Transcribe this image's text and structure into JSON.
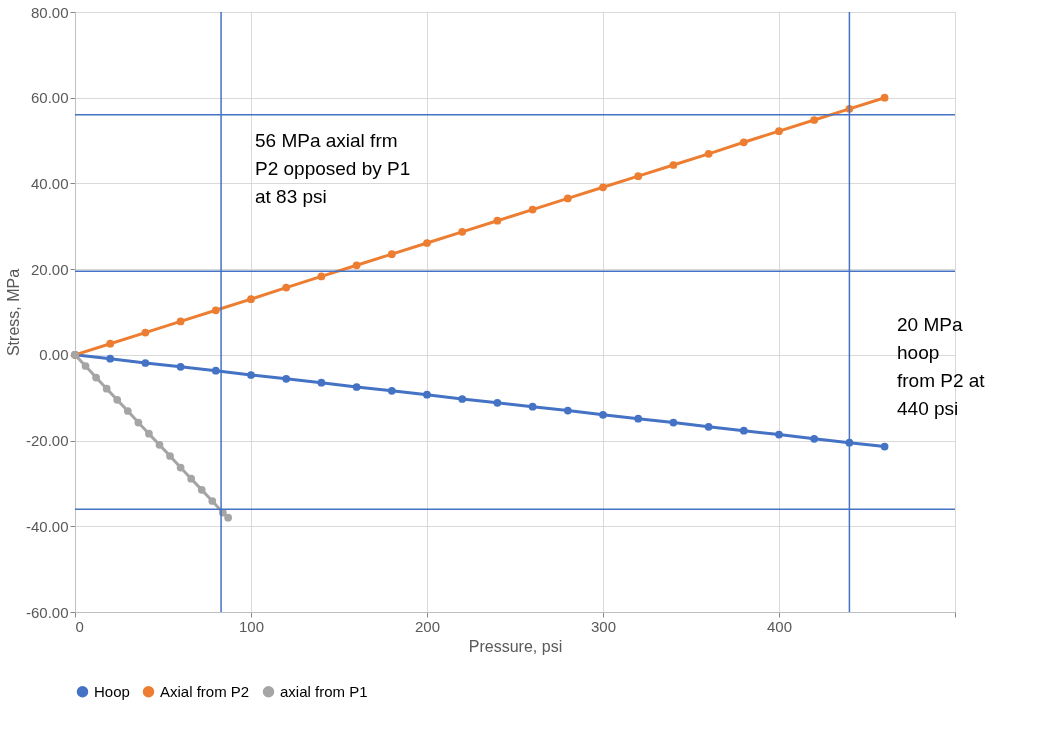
{
  "chart_data": {
    "type": "line",
    "xlabel": "Pressure, psi",
    "ylabel": "Stress, MPa",
    "xlim": [
      0,
      500
    ],
    "xticks": [
      0,
      100,
      200,
      300,
      400,
      {
        "value": 500,
        "label": null
      }
    ],
    "ylim": [
      -60,
      80
    ],
    "yticks": [
      {
        "value": -60,
        "label": "-60.00"
      },
      {
        "value": -40,
        "label": "-40.00"
      },
      {
        "value": -20,
        "label": "-20.00"
      },
      {
        "value": 0,
        "label": "0.00"
      },
      {
        "value": 20,
        "label": "20.00"
      },
      {
        "value": 40,
        "label": "40.00"
      },
      {
        "value": 60,
        "label": "60.00"
      },
      {
        "value": 80,
        "label": "80.00"
      }
    ],
    "grid": true,
    "legend": "bottom",
    "marker": "circle",
    "line_style": "solid",
    "series": [
      {
        "name": "Hoop",
        "color": "#4472c4",
        "x": [
          0,
          20,
          40,
          60,
          80,
          100,
          120,
          140,
          160,
          180,
          200,
          220,
          240,
          260,
          280,
          300,
          320,
          340,
          360,
          380,
          400,
          420,
          440,
          460
        ],
        "values": [
          0,
          -0.9,
          -1.9,
          -2.8,
          -3.7,
          -4.7,
          -5.6,
          -6.5,
          -7.5,
          -8.4,
          -9.3,
          -10.3,
          -11.2,
          -12.1,
          -13.0,
          -14.0,
          -14.9,
          -15.8,
          -16.8,
          -17.7,
          -18.6,
          -19.6,
          -20.5,
          -21.4
        ]
      },
      {
        "name": "Axial from P2",
        "color": "#ed7d31",
        "x": [
          0,
          20,
          40,
          60,
          80,
          100,
          120,
          140,
          160,
          180,
          200,
          220,
          240,
          260,
          280,
          300,
          320,
          340,
          360,
          380,
          400,
          420,
          440,
          460
        ],
        "values": [
          0,
          2.6,
          5.2,
          7.8,
          10.4,
          13.0,
          15.7,
          18.3,
          20.9,
          23.5,
          26.1,
          28.7,
          31.3,
          33.9,
          36.5,
          39.1,
          41.7,
          44.3,
          46.9,
          49.6,
          52.2,
          54.8,
          57.4,
          60.0
        ]
      },
      {
        "name": "axial from P1",
        "color": "#a5a5a5",
        "x": [
          0,
          6,
          12,
          18,
          24,
          30,
          36,
          42,
          48,
          54,
          60,
          66,
          72,
          78,
          84,
          87
        ],
        "values": [
          0,
          -2.6,
          -5.3,
          -7.9,
          -10.5,
          -13.1,
          -15.8,
          -18.4,
          -21.0,
          -23.6,
          -26.3,
          -28.9,
          -31.5,
          -34.1,
          -36.8,
          -38.0
        ]
      }
    ],
    "ref_lines": [
      {
        "axis": "y",
        "value": 56,
        "label": null,
        "color": "#4472c4"
      },
      {
        "axis": "y",
        "value": 19.5,
        "label": null,
        "color": "#4472c4"
      },
      {
        "axis": "y",
        "value": -36,
        "label": null,
        "color": "#4472c4"
      },
      {
        "axis": "x",
        "value": 83,
        "label": null,
        "color": "#4472c4"
      },
      {
        "axis": "x",
        "value": 440,
        "label": null,
        "color": "#4472c4"
      }
    ],
    "annotations": [
      "56 MPa axial frm\nP2 opposed by P1\nat 83 psi",
      "20 MPa\nhoop\nfrom P2 at\n440 psi"
    ]
  }
}
